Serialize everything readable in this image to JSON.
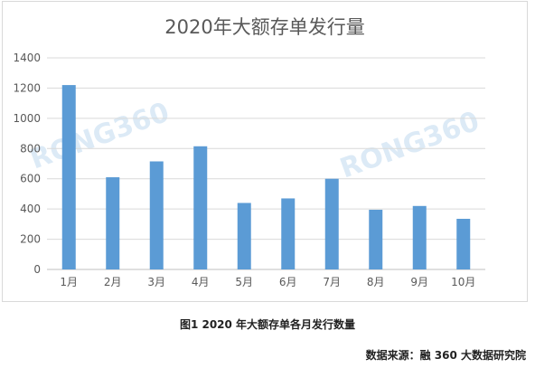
{
  "chart_data": {
    "type": "bar",
    "title": "2020年大额存单发行量",
    "categories": [
      "1月",
      "2月",
      "3月",
      "4月",
      "5月",
      "6月",
      "7月",
      "8月",
      "9月",
      "10月"
    ],
    "values": [
      1220,
      610,
      715,
      815,
      440,
      470,
      600,
      395,
      420,
      335
    ],
    "ylim": [
      0,
      1400
    ],
    "yticks": [
      0,
      200,
      400,
      600,
      800,
      1000,
      1200,
      1400
    ],
    "grid": true,
    "bar_color": "#5b9bd5",
    "watermark": "RONG360"
  },
  "caption": "图1 2020 年大额存单各月发行数量",
  "source": "数据来源：融 360 大数据研究院"
}
